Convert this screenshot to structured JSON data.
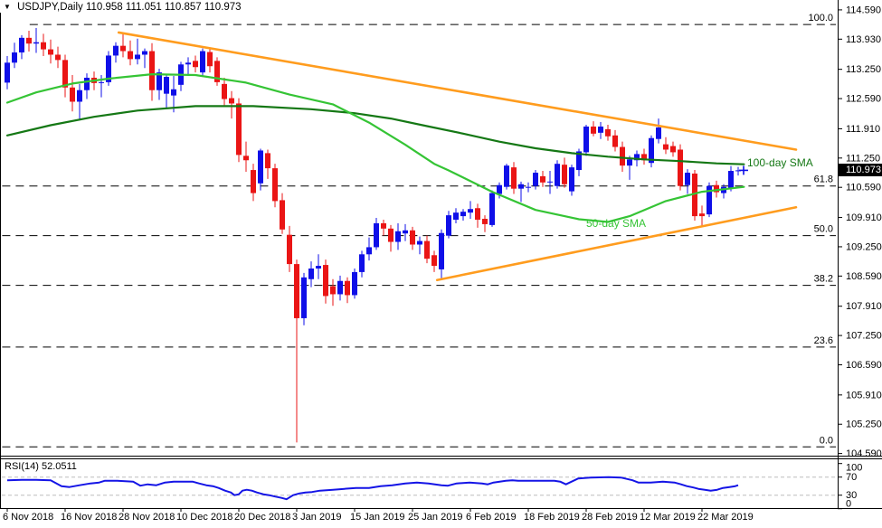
{
  "window": {
    "header": {
      "symbol": "USDJPY,Daily",
      "ohlc": "110.958 111.051 110.857 110.973",
      "menu_icon": "▼"
    }
  },
  "colors": {
    "background": "#ffffff",
    "bull_candle": "#0f0fe8",
    "bear_candle": "#ea1515",
    "sma_100": "#157815",
    "sma_50": "#35c435",
    "trendline": "#ff9c1e",
    "fib_line": "#000000",
    "rsi_line": "#1414e6",
    "rsi_level": "#bdbdbd",
    "axis_text": "#000000",
    "badge_bg": "#000000",
    "badge_fg": "#ffffff"
  },
  "chart_data": {
    "type": "candlestick",
    "title": "USDJPY,Daily",
    "price_badge": "110.973",
    "current_price": 110.973,
    "price_axis_labels": [
      "114.590",
      "113.930",
      "113.250",
      "112.590",
      "111.910",
      "111.250",
      "110.590",
      "109.910",
      "109.250",
      "108.590",
      "107.910",
      "107.250",
      "106.590",
      "105.910",
      "105.250",
      "104.590"
    ],
    "x_ticks": [
      {
        "bar": 0,
        "label": "6 Nov 2018"
      },
      {
        "bar": 8,
        "label": "16 Nov 2018"
      },
      {
        "bar": 16,
        "label": "28 Nov 2018"
      },
      {
        "bar": 24,
        "label": "10 Dec 2018"
      },
      {
        "bar": 32,
        "label": "20 Dec 2018"
      },
      {
        "bar": 40,
        "label": "3 Jan 2019"
      },
      {
        "bar": 48,
        "label": "15 Jan 2019"
      },
      {
        "bar": 56,
        "label": "25 Jan 2019"
      },
      {
        "bar": 64,
        "label": "6 Feb 2019"
      },
      {
        "bar": 72,
        "label": "18 Feb 2019"
      },
      {
        "bar": 80,
        "label": "28 Feb 2019"
      },
      {
        "bar": 88,
        "label": "12 Mar 2019"
      },
      {
        "bar": 96,
        "label": "22 Mar 2019"
      }
    ],
    "candles_format": [
      "open",
      "high",
      "low",
      "close"
    ],
    "candles": [
      [
        112.95,
        113.55,
        112.8,
        113.4
      ],
      [
        113.4,
        113.85,
        113.28,
        113.63
      ],
      [
        113.63,
        114.02,
        113.48,
        113.96
      ],
      [
        113.96,
        114.12,
        113.65,
        113.83
      ],
      [
        113.83,
        114.18,
        113.62,
        113.86
      ],
      [
        113.86,
        114.05,
        113.55,
        113.7
      ],
      [
        113.7,
        113.92,
        113.38,
        113.58
      ],
      [
        113.58,
        113.76,
        113.28,
        113.46
      ],
      [
        113.46,
        113.58,
        112.62,
        112.84
      ],
      [
        112.84,
        113.12,
        112.3,
        112.52
      ],
      [
        112.52,
        112.92,
        112.1,
        112.78
      ],
      [
        112.78,
        113.16,
        112.58,
        113.06
      ],
      [
        113.06,
        113.2,
        112.78,
        112.94
      ],
      [
        112.94,
        113.12,
        112.62,
        112.96
      ],
      [
        112.96,
        113.66,
        112.88,
        113.56
      ],
      [
        113.56,
        113.86,
        113.4,
        113.78
      ],
      [
        113.78,
        114.04,
        113.52,
        113.66
      ],
      [
        113.66,
        113.9,
        113.34,
        113.48
      ],
      [
        113.48,
        113.94,
        113.36,
        113.58
      ],
      [
        113.58,
        113.72,
        113.28,
        113.66
      ],
      [
        113.66,
        113.84,
        112.54,
        112.78
      ],
      [
        112.78,
        113.26,
        112.56,
        113.18
      ],
      [
        112.7,
        113.14,
        112.38,
        113.08
      ],
      [
        112.66,
        113.1,
        112.28,
        112.8
      ],
      [
        112.9,
        113.42,
        112.76,
        113.36
      ],
      [
        113.36,
        113.52,
        113.1,
        113.4
      ],
      [
        113.44,
        113.56,
        113.18,
        113.3
      ],
      [
        113.18,
        113.72,
        113.08,
        113.66
      ],
      [
        113.64,
        113.72,
        113.18,
        113.32
      ],
      [
        113.44,
        113.52,
        112.88,
        112.96
      ],
      [
        112.92,
        113.06,
        112.42,
        112.58
      ],
      [
        112.6,
        112.76,
        112.14,
        112.48
      ],
      [
        112.48,
        112.6,
        111.16,
        111.32
      ],
      [
        111.3,
        111.62,
        110.94,
        111.2
      ],
      [
        110.98,
        111.12,
        110.28,
        110.46
      ],
      [
        110.68,
        111.46,
        110.52,
        111.42
      ],
      [
        111.36,
        111.44,
        110.78,
        111.02
      ],
      [
        111.02,
        111.12,
        110.14,
        110.28
      ],
      [
        110.3,
        110.46,
        109.54,
        109.64
      ],
      [
        109.52,
        109.72,
        108.68,
        108.86
      ],
      [
        108.86,
        108.96,
        104.84,
        107.64
      ],
      [
        107.64,
        108.66,
        107.48,
        108.56
      ],
      [
        108.52,
        108.92,
        108.34,
        108.76
      ],
      [
        108.76,
        109.08,
        108.52,
        108.82
      ],
      [
        108.84,
        108.96,
        107.97,
        108.14
      ],
      [
        108.36,
        108.52,
        107.92,
        108.18
      ],
      [
        108.18,
        108.6,
        108.04,
        108.48
      ],
      [
        108.48,
        108.56,
        107.98,
        108.16
      ],
      [
        108.16,
        108.76,
        108.08,
        108.68
      ],
      [
        108.68,
        109.16,
        108.56,
        109.08
      ],
      [
        109.08,
        109.46,
        108.94,
        109.24
      ],
      [
        109.24,
        109.9,
        109.18,
        109.78
      ],
      [
        109.78,
        109.86,
        109.5,
        109.66
      ],
      [
        109.66,
        109.74,
        109.14,
        109.36
      ],
      [
        109.36,
        109.78,
        109.18,
        109.6
      ],
      [
        109.55,
        109.76,
        109.38,
        109.62
      ],
      [
        109.62,
        109.7,
        109.18,
        109.3
      ],
      [
        109.3,
        109.48,
        109.08,
        109.38
      ],
      [
        109.38,
        109.5,
        108.88,
        108.98
      ],
      [
        109.06,
        109.16,
        108.68,
        108.82
      ],
      [
        108.74,
        109.64,
        108.5,
        109.56
      ],
      [
        109.5,
        110.06,
        109.44,
        109.96
      ],
      [
        109.86,
        110.12,
        109.78,
        110.02
      ],
      [
        109.94,
        110.1,
        109.84,
        110.04
      ],
      [
        110.02,
        110.28,
        109.88,
        110.1
      ],
      [
        110.12,
        110.22,
        109.68,
        109.86
      ],
      [
        109.88,
        109.96,
        109.58,
        109.76
      ],
      [
        109.74,
        110.52,
        109.7,
        110.46
      ],
      [
        110.44,
        110.7,
        110.34,
        110.64
      ],
      [
        110.6,
        111.12,
        110.54,
        111.08
      ],
      [
        111.04,
        111.16,
        110.44,
        110.56
      ],
      [
        110.56,
        110.72,
        110.26,
        110.66
      ],
      [
        110.6,
        110.7,
        110.48,
        110.6
      ],
      [
        110.62,
        110.98,
        110.54,
        110.92
      ],
      [
        110.84,
        110.96,
        110.6,
        110.7
      ],
      [
        110.7,
        110.96,
        110.44,
        110.72
      ],
      [
        110.62,
        111.2,
        110.56,
        111.12
      ],
      [
        111.1,
        111.26,
        110.58,
        110.66
      ],
      [
        110.5,
        111.1,
        110.4,
        111.04
      ],
      [
        110.98,
        111.46,
        110.84,
        111.4
      ],
      [
        111.38,
        112.0,
        111.3,
        111.96
      ],
      [
        111.96,
        112.08,
        111.74,
        111.8
      ],
      [
        111.82,
        112.06,
        111.68,
        111.96
      ],
      [
        111.9,
        112.0,
        111.64,
        111.74
      ],
      [
        111.76,
        111.88,
        111.4,
        111.5
      ],
      [
        111.5,
        111.62,
        110.94,
        111.08
      ],
      [
        111.08,
        111.3,
        110.76,
        111.22
      ],
      [
        111.2,
        111.42,
        111.06,
        111.34
      ],
      [
        111.34,
        111.46,
        111.1,
        111.2
      ],
      [
        111.14,
        111.76,
        111.04,
        111.7
      ],
      [
        111.68,
        112.14,
        111.58,
        111.94
      ],
      [
        111.56,
        111.72,
        111.34,
        111.44
      ],
      [
        111.52,
        111.62,
        111.28,
        111.38
      ],
      [
        111.44,
        111.56,
        110.52,
        110.62
      ],
      [
        110.64,
        111.0,
        110.44,
        110.92
      ],
      [
        110.9,
        110.98,
        109.84,
        109.94
      ],
      [
        110.0,
        110.18,
        109.72,
        109.94
      ],
      [
        109.98,
        110.7,
        109.92,
        110.62
      ],
      [
        110.64,
        110.74,
        110.36,
        110.48
      ],
      [
        110.46,
        110.66,
        110.34,
        110.6
      ],
      [
        110.57,
        111.07,
        110.5,
        110.96
      ],
      [
        110.958,
        111.051,
        110.857,
        110.973
      ]
    ],
    "fib_levels": [
      {
        "label": "100.0",
        "price": 114.26,
        "x_start_bar": 3.1
      },
      {
        "label": "61.8",
        "price": 110.62,
        "x_start_bar": -0.7
      },
      {
        "label": "50.0",
        "price": 109.5,
        "x_start_bar": -0.7
      },
      {
        "label": "38.2",
        "price": 108.38,
        "x_start_bar": -0.7
      },
      {
        "label": "23.6",
        "price": 106.99,
        "x_start_bar": -0.7
      },
      {
        "label": "0.0",
        "price": 104.74,
        "x_start_bar": -0.7
      }
    ],
    "sma100": {
      "label": "100-day SMA",
      "period": 100,
      "points": [
        [
          0,
          111.76
        ],
        [
          6,
          111.99
        ],
        [
          12,
          112.18
        ],
        [
          18,
          112.32
        ],
        [
          26,
          112.42
        ],
        [
          34,
          112.42
        ],
        [
          42,
          112.35
        ],
        [
          48,
          112.26
        ],
        [
          53,
          112.14
        ],
        [
          58,
          111.97
        ],
        [
          63,
          111.8
        ],
        [
          68,
          111.62
        ],
        [
          73,
          111.47
        ],
        [
          78,
          111.36
        ],
        [
          83,
          111.28
        ],
        [
          88,
          111.22
        ],
        [
          93,
          111.18
        ],
        [
          98,
          111.13
        ],
        [
          101.8,
          111.11
        ]
      ]
    },
    "sma50": {
      "label": "50-day SMA",
      "period": 50,
      "points": [
        [
          0,
          112.5
        ],
        [
          4,
          112.73
        ],
        [
          9,
          112.93
        ],
        [
          14,
          113.04
        ],
        [
          20,
          113.14
        ],
        [
          26,
          113.12
        ],
        [
          33,
          112.95
        ],
        [
          39,
          112.68
        ],
        [
          45,
          112.46
        ],
        [
          50,
          112.05
        ],
        [
          55,
          111.55
        ],
        [
          59,
          111.12
        ],
        [
          61,
          110.97
        ],
        [
          67,
          110.49
        ],
        [
          73,
          110.08
        ],
        [
          79,
          109.87
        ],
        [
          83,
          109.81
        ],
        [
          86,
          109.94
        ],
        [
          91,
          110.28
        ],
        [
          96,
          110.49
        ],
        [
          101.8,
          110.6
        ]
      ]
    },
    "trendlines": [
      {
        "name": "falling-resistance",
        "points": [
          [
            15.4,
            114.08
          ],
          [
            109,
            111.44
          ]
        ]
      },
      {
        "name": "rising-support",
        "points": [
          [
            59.4,
            108.5
          ],
          [
            109,
            110.14
          ]
        ]
      }
    ],
    "rsi": {
      "label": "RSI(14) 52.0511",
      "period": 14,
      "value": 52.0511,
      "levels": [
        70,
        30
      ],
      "axis_labels": [
        "100",
        "70",
        "30",
        "0"
      ],
      "points": [
        [
          0,
          63
        ],
        [
          2,
          64
        ],
        [
          4,
          64
        ],
        [
          6,
          63
        ],
        [
          7.5,
          50
        ],
        [
          8.6,
          48
        ],
        [
          10,
          52
        ],
        [
          11.5,
          56
        ],
        [
          12.7,
          58
        ],
        [
          13.5,
          62
        ],
        [
          15.2,
          62
        ],
        [
          17.4,
          60
        ],
        [
          18.4,
          51
        ],
        [
          19.4,
          54
        ],
        [
          20.6,
          52
        ],
        [
          21.8,
          58
        ],
        [
          23,
          60
        ],
        [
          24.6,
          60
        ],
        [
          25.6,
          60
        ],
        [
          26.5,
          56
        ],
        [
          27.5,
          52
        ],
        [
          28.4,
          50
        ],
        [
          29.2,
          46
        ],
        [
          30.1,
          40
        ],
        [
          30.9,
          36
        ],
        [
          31.4,
          30
        ],
        [
          32,
          32
        ],
        [
          32.5,
          40
        ],
        [
          33.1,
          42
        ],
        [
          33.8,
          40
        ],
        [
          34.5,
          36
        ],
        [
          35.4,
          32
        ],
        [
          36.2,
          30
        ],
        [
          37,
          27
        ],
        [
          37.9,
          24
        ],
        [
          38.6,
          21
        ],
        [
          39.5,
          30
        ],
        [
          40.4,
          34
        ],
        [
          41.2,
          36
        ],
        [
          42.1,
          37
        ],
        [
          43.2,
          40
        ],
        [
          45,
          42
        ],
        [
          46.6,
          44
        ],
        [
          48.2,
          46
        ],
        [
          50,
          46
        ],
        [
          51.6,
          50
        ],
        [
          53.2,
          52
        ],
        [
          55,
          56
        ],
        [
          56.6,
          58
        ],
        [
          58.2,
          56
        ],
        [
          60,
          52
        ],
        [
          60.9,
          51
        ],
        [
          62.1,
          56
        ],
        [
          63.9,
          58
        ],
        [
          65.6,
          56
        ],
        [
          66.4,
          54
        ],
        [
          67.2,
          58
        ],
        [
          68.9,
          62
        ],
        [
          69.8,
          63
        ],
        [
          70.6,
          62
        ],
        [
          72.2,
          62
        ],
        [
          73.9,
          62
        ],
        [
          75.6,
          62
        ],
        [
          76.4,
          60
        ],
        [
          77.2,
          54
        ],
        [
          78.9,
          67
        ],
        [
          80.6,
          69
        ],
        [
          83.1,
          70
        ],
        [
          84.8,
          69
        ],
        [
          86.4,
          63
        ],
        [
          87.2,
          58
        ],
        [
          88.9,
          58
        ],
        [
          90.6,
          60
        ],
        [
          92.2,
          58
        ],
        [
          93.1,
          54
        ],
        [
          93.9,
          50
        ],
        [
          94.8,
          47
        ],
        [
          95.5,
          44
        ],
        [
          96.4,
          42
        ],
        [
          97.2,
          40
        ],
        [
          98.1,
          42
        ],
        [
          98.9,
          46
        ],
        [
          99.8,
          48
        ],
        [
          100.6,
          50
        ],
        [
          101,
          52
        ]
      ]
    }
  }
}
